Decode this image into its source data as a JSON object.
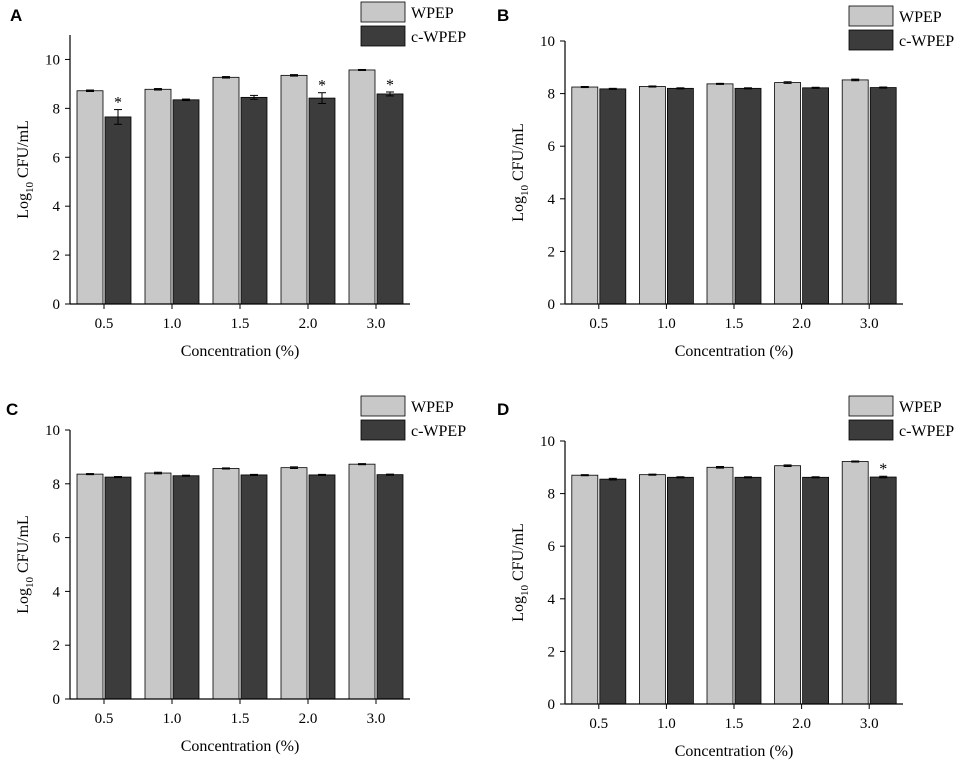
{
  "legend_labels": [
    "WPEP",
    "c-WPEP"
  ],
  "colors": {
    "WPEP": "#c8c8c8",
    "c-WPEP": "#3c3c3c",
    "axis": "#000000"
  },
  "chart_data": [
    {
      "panel": "A",
      "type": "bar",
      "categories": [
        "0.5",
        "1.0",
        "1.5",
        "2.0",
        "3.0"
      ],
      "series": [
        {
          "name": "WPEP",
          "values": [
            8.72,
            8.78,
            9.27,
            9.35,
            9.57
          ],
          "errors": [
            0.03,
            0.03,
            0.03,
            0.03,
            0.02
          ]
        },
        {
          "name": "c-WPEP",
          "values": [
            7.65,
            8.35,
            8.45,
            8.42,
            8.59
          ],
          "errors": [
            0.3,
            0.03,
            0.08,
            0.22,
            0.08
          ]
        }
      ],
      "significance": {
        "c-WPEP": [
          "*",
          "",
          "",
          "*",
          "*"
        ]
      },
      "xlabel": "Concentration (%)",
      "ylabel": {
        "main": "Log",
        "sub": "10",
        "rest": " CFU/mL"
      },
      "yticks": [
        "0",
        "2",
        "4",
        "6",
        "8",
        "10"
      ],
      "ylim": [
        0,
        11
      ],
      "legend": "top-right"
    },
    {
      "panel": "B",
      "type": "bar",
      "categories": [
        "0.5",
        "1.0",
        "1.5",
        "2.0",
        "3.0"
      ],
      "series": [
        {
          "name": "WPEP",
          "values": [
            8.25,
            8.27,
            8.37,
            8.42,
            8.52
          ],
          "errors": [
            0.02,
            0.02,
            0.02,
            0.03,
            0.03
          ]
        },
        {
          "name": "c-WPEP",
          "values": [
            8.18,
            8.2,
            8.2,
            8.22,
            8.23
          ],
          "errors": [
            0.02,
            0.02,
            0.02,
            0.02,
            0.02
          ]
        }
      ],
      "significance": {
        "c-WPEP": [
          "",
          "",
          "",
          "",
          ""
        ]
      },
      "xlabel": "Concentration (%)",
      "ylabel": {
        "main": "Log",
        "sub": "10",
        "rest": " CFU/mL"
      },
      "yticks": [
        "0",
        "2",
        "4",
        "6",
        "8",
        "10"
      ],
      "ylim": [
        0,
        10
      ],
      "legend": "top-right"
    },
    {
      "panel": "C",
      "type": "bar",
      "categories": [
        "0.5",
        "1.0",
        "1.5",
        "2.0",
        "3.0"
      ],
      "series": [
        {
          "name": "WPEP",
          "values": [
            8.36,
            8.4,
            8.57,
            8.6,
            8.73
          ],
          "errors": [
            0.02,
            0.03,
            0.02,
            0.03,
            0.02
          ]
        },
        {
          "name": "c-WPEP",
          "values": [
            8.25,
            8.3,
            8.33,
            8.33,
            8.34
          ],
          "errors": [
            0.02,
            0.02,
            0.02,
            0.02,
            0.02
          ]
        }
      ],
      "significance": {
        "c-WPEP": [
          "",
          "",
          "",
          "",
          ""
        ]
      },
      "xlabel": "Concentration (%)",
      "ylabel": {
        "main": "Log",
        "sub": "10",
        "rest": " CFU/mL"
      },
      "yticks": [
        "0",
        "2",
        "4",
        "6",
        "8",
        "10"
      ],
      "ylim": [
        0,
        10
      ],
      "legend": "top-right"
    },
    {
      "panel": "D",
      "type": "bar",
      "categories": [
        "0.5",
        "1.0",
        "1.5",
        "2.0",
        "3.0"
      ],
      "series": [
        {
          "name": "WPEP",
          "values": [
            8.7,
            8.72,
            9.0,
            9.06,
            9.22
          ],
          "errors": [
            0.02,
            0.02,
            0.03,
            0.03,
            0.02
          ]
        },
        {
          "name": "c-WPEP",
          "values": [
            8.55,
            8.62,
            8.62,
            8.62,
            8.63
          ],
          "errors": [
            0.03,
            0.02,
            0.02,
            0.02,
            0.03
          ]
        }
      ],
      "significance": {
        "c-WPEP": [
          "",
          "",
          "",
          "",
          "*"
        ]
      },
      "xlabel": "Concentration (%)",
      "ylabel": {
        "main": "Log",
        "sub": "10",
        "rest": " CFU/mL"
      },
      "yticks": [
        "0",
        "2",
        "4",
        "6",
        "8",
        "10"
      ],
      "ylim": [
        0,
        10
      ],
      "legend": "top-right"
    }
  ]
}
